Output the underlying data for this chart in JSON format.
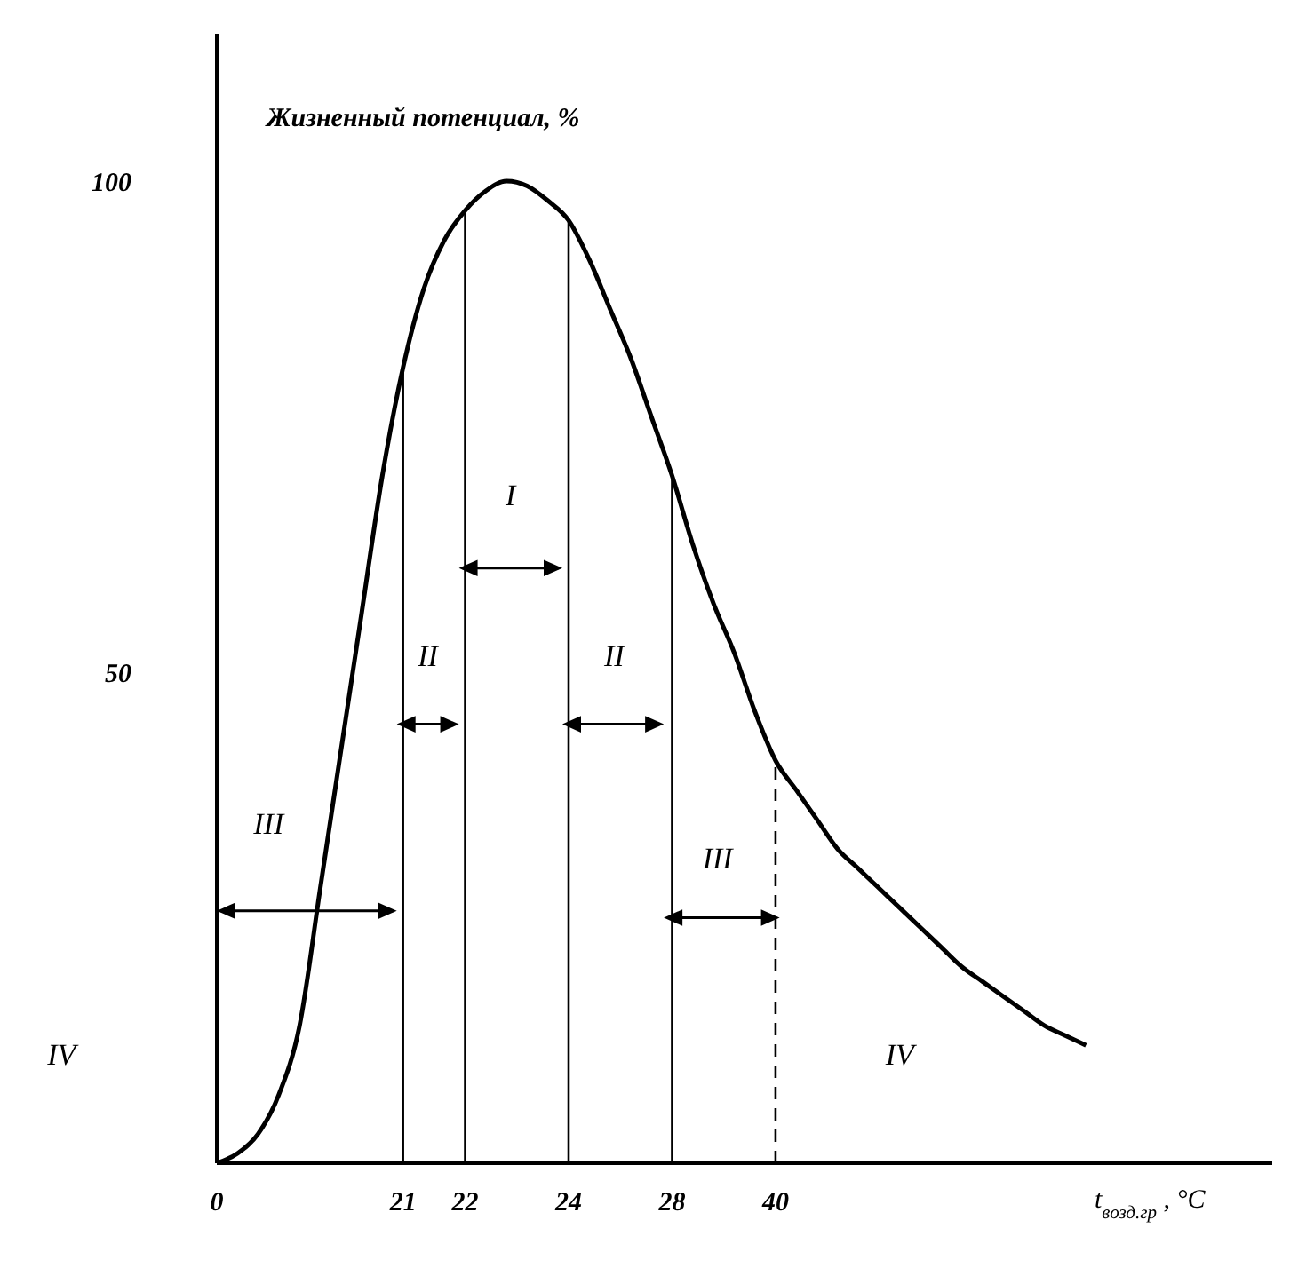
{
  "chart_data": {
    "type": "line",
    "ylabel": "Жизненный потенциал, %",
    "xlabel": "t$_{возд.гр}$, °C",
    "categories": [
      "0",
      null,
      null,
      null,
      null,
      null,
      null,
      null,
      null,
      "21",
      null,
      null,
      "22",
      null,
      null,
      null,
      null,
      "24",
      null,
      null,
      null,
      null,
      "28",
      null,
      null,
      null,
      null,
      "40",
      null,
      null,
      null,
      null,
      null,
      null,
      null,
      null,
      null,
      null,
      null,
      null,
      null,
      null,
      null
    ],
    "series": [
      {
        "color": "#000000",
        "values": [
          0,
          1,
          3,
          7,
          14,
          28,
          42,
          56,
          70,
          81,
          89,
          94,
          97,
          99,
          100,
          99.5,
          98,
          96,
          92,
          87,
          82,
          76,
          70,
          63,
          57,
          52,
          46,
          41,
          38,
          35,
          32,
          30,
          28,
          26,
          24,
          22,
          20,
          18.5,
          17,
          15.5,
          14,
          13,
          12
        ]
      }
    ],
    "ylim": [
      0,
      115
    ],
    "yticks": [
      50,
      100
    ],
    "marker": "none",
    "line_style": "solid",
    "ref_lines": [
      {
        "axis": "x",
        "value": "21",
        "line_style": "solid"
      },
      {
        "axis": "x",
        "value": "22",
        "line_style": "solid"
      },
      {
        "axis": "x",
        "value": "24",
        "line_style": "solid"
      },
      {
        "axis": "x",
        "value": "28",
        "line_style": "solid"
      },
      {
        "axis": "x",
        "value": "40",
        "line_style": "dashed"
      }
    ],
    "annotations": [
      "I",
      "II",
      "II",
      "III",
      "III",
      "IV",
      "IV"
    ]
  }
}
